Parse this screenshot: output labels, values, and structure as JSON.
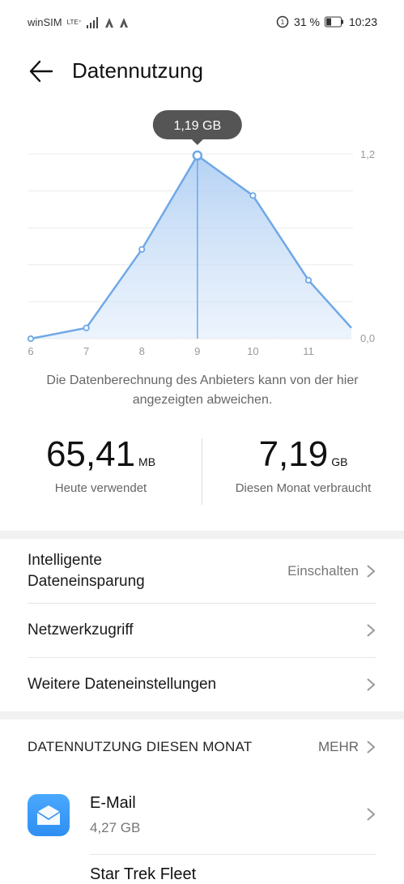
{
  "status": {
    "carrier": "winSIM",
    "net": "LTE⁺",
    "battery_pct": "31 %",
    "time": "10:23"
  },
  "header": {
    "title": "Datennutzung"
  },
  "chart_data": {
    "type": "area",
    "x": [
      6,
      7,
      8,
      9,
      10,
      11,
      12
    ],
    "x_tick_labels": [
      "6",
      "7",
      "8",
      "9",
      "10",
      "11"
    ],
    "values": [
      0.0,
      0.07,
      0.58,
      1.19,
      0.93,
      0.38,
      0.07
    ],
    "y_tick_labels": [
      "1,2",
      "0,0"
    ],
    "ylim": [
      0,
      1.2
    ],
    "tooltip": "1,19 GB",
    "selected_x": 9,
    "grid": true,
    "accent": "#6fa8e6"
  },
  "note": "Die Datenberechnung des Anbieters kann von der hier angezeigten abweichen.",
  "stats": {
    "today_value": "65,41",
    "today_unit": "MB",
    "today_label": "Heute verwendet",
    "month_value": "7,19",
    "month_unit": "GB",
    "month_label": "Diesen Monat verbraucht"
  },
  "settings": {
    "smart_label_1": "Intelligente",
    "smart_label_2": "Dateneinsparung",
    "smart_value": "Einschalten",
    "network_label": "Netzwerkzugriff",
    "more_settings_label": "Weitere Dateneinstellungen"
  },
  "usage": {
    "heading": "DATENNUTZUNG DIESEN MONAT",
    "more_label": "MEHR",
    "apps": [
      {
        "name": "E-Mail",
        "size": "4,27 GB"
      },
      {
        "name": "Star Trek Fleet"
      }
    ]
  }
}
